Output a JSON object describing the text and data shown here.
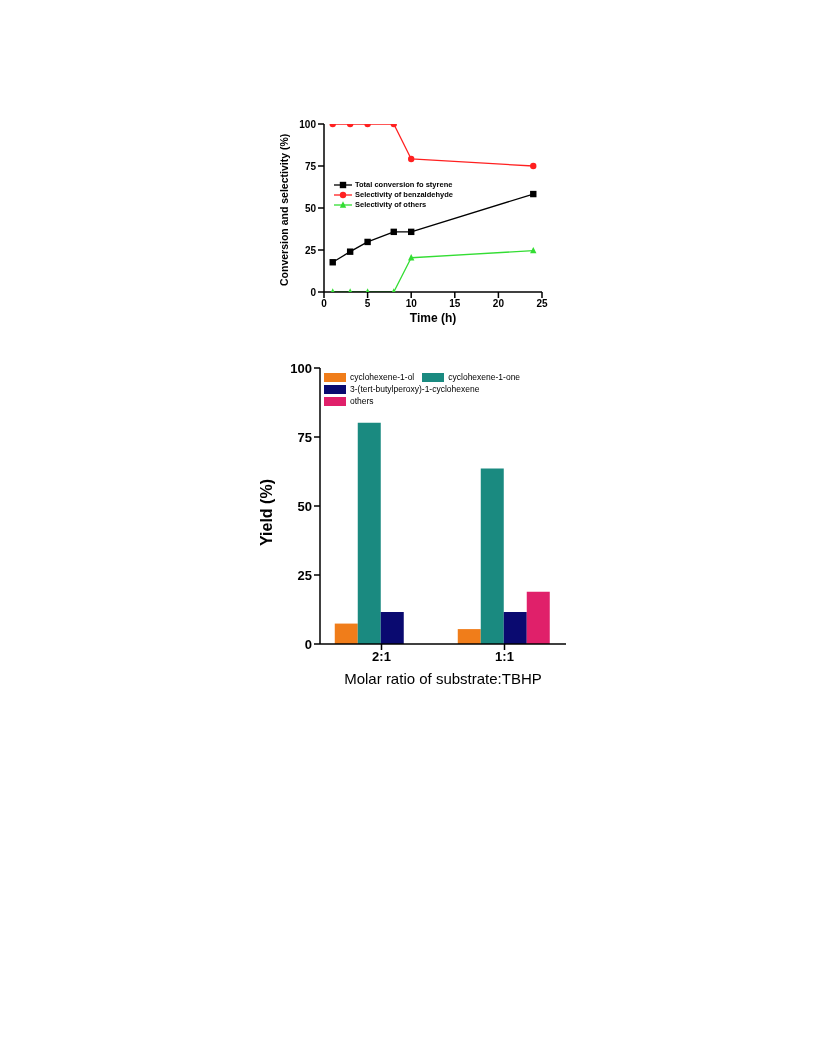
{
  "chart_data": [
    {
      "type": "line",
      "xlabel": "Time (h)",
      "ylabel": "Conversion and selectivity (%)",
      "x": [
        1,
        3,
        5,
        8,
        10,
        24
      ],
      "xlim": [
        0,
        25
      ],
      "xticks": [
        0,
        5,
        10,
        15,
        20,
        25
      ],
      "ylim": [
        0,
        100
      ],
      "yticks": [
        0,
        25,
        50,
        75,
        100
      ],
      "legend": "left",
      "grid": false,
      "series": [
        {
          "name": "Total conversion fo styrene",
          "color": "#000000",
          "marker": "square",
          "values": [
            17.7,
            24,
            29.8,
            35.8,
            35.8,
            58.3
          ]
        },
        {
          "name": "Selectivity of benzaldehyde",
          "color": "#ff2020",
          "marker": "circle",
          "values": [
            100,
            100,
            100,
            100,
            79.2,
            75
          ]
        },
        {
          "name": "Selectivity of others",
          "color": "#33dd33",
          "marker": "triangle",
          "values": [
            0,
            0,
            0,
            0,
            20.4,
            24.6
          ]
        }
      ]
    },
    {
      "type": "bar",
      "xlabel": "Molar ratio of substrate:TBHP",
      "ylabel": "Yield (%)",
      "categories": [
        "2:1",
        "1:1"
      ],
      "ylim": [
        0,
        100
      ],
      "yticks": [
        0,
        25,
        50,
        75,
        100
      ],
      "legend": "top left",
      "grid": false,
      "series": [
        {
          "name": "cyclohexene-1-ol",
          "color": "#f07d1a",
          "values": [
            7.4,
            5.4
          ]
        },
        {
          "name": "cyclohexene-1-one",
          "color": "#1a8a80",
          "values": [
            80.2,
            63.6
          ]
        },
        {
          "name": "3-(tert-butylperoxy)-1-cyclohexene",
          "color": "#0a0a70",
          "values": [
            11.6,
            11.6
          ]
        },
        {
          "name": "others",
          "color": "#e0206a",
          "values": [
            0,
            18.9
          ]
        }
      ]
    }
  ]
}
